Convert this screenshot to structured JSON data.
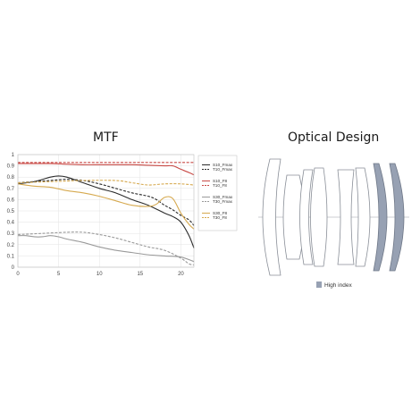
{
  "left_panel": {
    "title": "MTF"
  },
  "right_panel": {
    "title": "Optical Design",
    "legend_label": "High index",
    "colors": {
      "high_index": "#97a1b3",
      "element_stroke": "#8a8f98",
      "axis": "#9aa0a8"
    }
  },
  "chart_data": {
    "type": "line",
    "title": "MTF",
    "xlabel": "",
    "ylabel": "",
    "xlim": [
      0,
      21.6
    ],
    "ylim": [
      0,
      1
    ],
    "xticks": [
      0,
      5,
      10,
      15,
      20
    ],
    "yticks": [
      0,
      0.1,
      0.2,
      0.3,
      0.4,
      0.5,
      0.6,
      0.7,
      0.8,
      0.9,
      1
    ],
    "ytick_labels": [
      "0",
      "0.1",
      "0.2",
      "0.3",
      "0.4",
      "0.5",
      "0.6",
      "0.7",
      "0.8",
      "0.9",
      "1"
    ],
    "grid": true,
    "legend_position": "right",
    "series": [
      {
        "name": "S10_Fmax",
        "color": "#2a2a2a",
        "dash": false,
        "points": [
          [
            0,
            0.74
          ],
          [
            2,
            0.76
          ],
          [
            4,
            0.8
          ],
          [
            5,
            0.81
          ],
          [
            6,
            0.8
          ],
          [
            8,
            0.75
          ],
          [
            10,
            0.7
          ],
          [
            12,
            0.66
          ],
          [
            14,
            0.6
          ],
          [
            16,
            0.55
          ],
          [
            18,
            0.48
          ],
          [
            19,
            0.45
          ],
          [
            20,
            0.4
          ],
          [
            21,
            0.28
          ],
          [
            21.6,
            0.17
          ]
        ]
      },
      {
        "name": "T10_Fmax",
        "color": "#2a2a2a",
        "dash": true,
        "points": [
          [
            0,
            0.75
          ],
          [
            2,
            0.76
          ],
          [
            4,
            0.77
          ],
          [
            6,
            0.78
          ],
          [
            8,
            0.77
          ],
          [
            10,
            0.74
          ],
          [
            12,
            0.7
          ],
          [
            14,
            0.66
          ],
          [
            16,
            0.63
          ],
          [
            17,
            0.6
          ],
          [
            18,
            0.55
          ],
          [
            19,
            0.51
          ],
          [
            20,
            0.46
          ],
          [
            21,
            0.42
          ],
          [
            21.6,
            0.37
          ]
        ]
      },
      {
        "name": "S10_F8",
        "color": "#c84a46",
        "dash": false,
        "points": [
          [
            0,
            0.92
          ],
          [
            2,
            0.92
          ],
          [
            4,
            0.92
          ],
          [
            6,
            0.915
          ],
          [
            8,
            0.91
          ],
          [
            10,
            0.91
          ],
          [
            12,
            0.91
          ],
          [
            14,
            0.91
          ],
          [
            16,
            0.905
          ],
          [
            18,
            0.9
          ],
          [
            19,
            0.9
          ],
          [
            20,
            0.87
          ],
          [
            21,
            0.84
          ],
          [
            21.6,
            0.82
          ]
        ]
      },
      {
        "name": "T10_F8",
        "color": "#c84a46",
        "dash": true,
        "points": [
          [
            0,
            0.93
          ],
          [
            4,
            0.93
          ],
          [
            8,
            0.93
          ],
          [
            12,
            0.93
          ],
          [
            16,
            0.93
          ],
          [
            18,
            0.93
          ],
          [
            20,
            0.93
          ],
          [
            21.6,
            0.93
          ]
        ]
      },
      {
        "name": "S30_Fmax",
        "color": "#9a9a9a",
        "dash": false,
        "points": [
          [
            0,
            0.28
          ],
          [
            1,
            0.28
          ],
          [
            2,
            0.27
          ],
          [
            3,
            0.27
          ],
          [
            4,
            0.28
          ],
          [
            5,
            0.27
          ],
          [
            6,
            0.25
          ],
          [
            8,
            0.22
          ],
          [
            10,
            0.18
          ],
          [
            12,
            0.15
          ],
          [
            14,
            0.13
          ],
          [
            16,
            0.11
          ],
          [
            18,
            0.1
          ],
          [
            20,
            0.09
          ],
          [
            21.6,
            0.05
          ]
        ]
      },
      {
        "name": "T30_Fmax",
        "color": "#9a9a9a",
        "dash": true,
        "points": [
          [
            0,
            0.29
          ],
          [
            3,
            0.3
          ],
          [
            6,
            0.31
          ],
          [
            8,
            0.31
          ],
          [
            10,
            0.29
          ],
          [
            12,
            0.26
          ],
          [
            14,
            0.22
          ],
          [
            16,
            0.18
          ],
          [
            18,
            0.15
          ],
          [
            20,
            0.08
          ],
          [
            21,
            0.03
          ],
          [
            21.6,
            0.02
          ]
        ]
      },
      {
        "name": "S30_F8",
        "color": "#d6a94f",
        "dash": false,
        "points": [
          [
            0,
            0.74
          ],
          [
            2,
            0.72
          ],
          [
            4,
            0.71
          ],
          [
            6,
            0.68
          ],
          [
            8,
            0.66
          ],
          [
            10,
            0.63
          ],
          [
            12,
            0.59
          ],
          [
            14,
            0.55
          ],
          [
            16,
            0.54
          ],
          [
            17,
            0.56
          ],
          [
            18,
            0.62
          ],
          [
            19,
            0.61
          ],
          [
            20,
            0.48
          ],
          [
            21,
            0.38
          ],
          [
            21.6,
            0.34
          ]
        ]
      },
      {
        "name": "T30_F8",
        "color": "#d6a94f",
        "dash": true,
        "points": [
          [
            0,
            0.75
          ],
          [
            4,
            0.76
          ],
          [
            8,
            0.77
          ],
          [
            12,
            0.77
          ],
          [
            14,
            0.75
          ],
          [
            16,
            0.73
          ],
          [
            18,
            0.74
          ],
          [
            20,
            0.74
          ],
          [
            21.6,
            0.73
          ]
        ]
      }
    ]
  }
}
